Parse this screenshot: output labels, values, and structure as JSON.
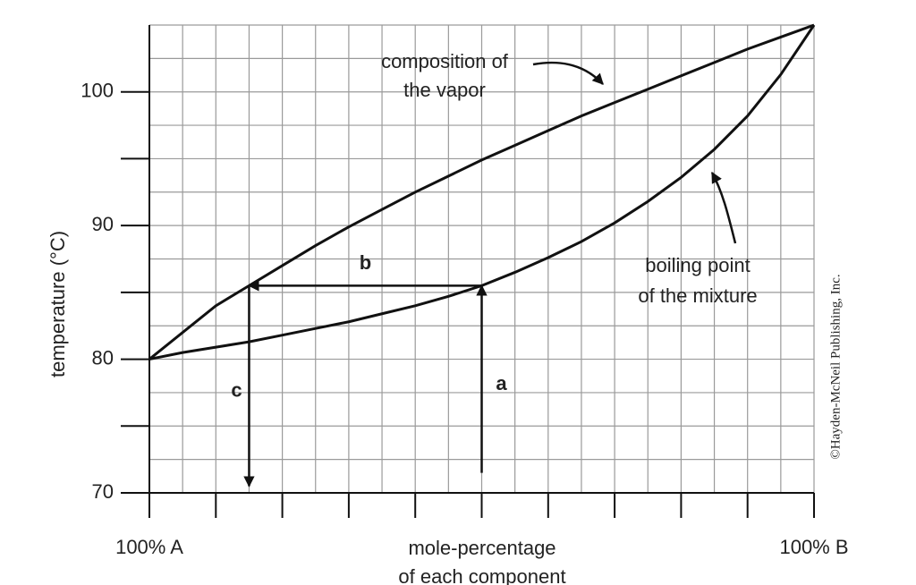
{
  "chart_data": {
    "type": "line",
    "ylabel": "temperature (°C)",
    "xlabel": [
      "mole-percentage",
      "of each component"
    ],
    "credit": "©Hayden-McNeil Publishing, Inc.",
    "xlim": [
      0,
      100
    ],
    "ylim": [
      70,
      105
    ],
    "xticks": [
      {
        "value": 0,
        "label": "100% A"
      },
      {
        "value": 10,
        "label": null
      },
      {
        "value": 20,
        "label": null
      },
      {
        "value": 30,
        "label": null
      },
      {
        "value": 40,
        "label": null
      },
      {
        "value": 50,
        "label": null
      },
      {
        "value": 60,
        "label": null
      },
      {
        "value": 70,
        "label": null
      },
      {
        "value": 80,
        "label": null
      },
      {
        "value": 90,
        "label": null
      },
      {
        "value": 100,
        "label": "100% B"
      }
    ],
    "yticks": [
      70,
      {
        "value": 75,
        "label": null
      },
      80,
      {
        "value": 85,
        "label": null
      },
      90,
      {
        "value": 95,
        "label": null
      },
      100
    ],
    "xgrid": [
      0,
      5,
      10,
      15,
      20,
      25,
      30,
      35,
      40,
      45,
      50,
      55,
      60,
      65,
      70,
      75,
      80,
      85,
      90,
      95,
      100
    ],
    "ygrid": [
      72.5,
      75,
      77.5,
      80,
      82.5,
      85,
      87.5,
      90,
      92.5,
      95,
      97.5,
      100,
      102.5,
      105
    ],
    "grid": true,
    "series": [
      {
        "name": [
          "composition of",
          "the vapor"
        ],
        "color": "#111111",
        "x": [
          0,
          5,
          10,
          15,
          20,
          25,
          30,
          35,
          40,
          45,
          50,
          55,
          60,
          65,
          70,
          75,
          80,
          85,
          90,
          95,
          100
        ],
        "values": [
          80,
          82,
          84,
          85.5,
          87,
          88.5,
          89.9,
          91.2,
          92.5,
          93.7,
          94.9,
          96,
          97.1,
          98.2,
          99.2,
          100.2,
          101.2,
          102.2,
          103.2,
          104.1,
          105
        ]
      },
      {
        "name": [
          "boiling point",
          "of the mixture"
        ],
        "color": "#111111",
        "x": [
          0,
          5,
          10,
          15,
          20,
          25,
          30,
          35,
          40,
          45,
          50,
          55,
          60,
          65,
          70,
          75,
          80,
          85,
          90,
          95,
          100
        ],
        "values": [
          80,
          80.5,
          80.9,
          81.3,
          81.8,
          82.3,
          82.8,
          83.4,
          84,
          84.7,
          85.5,
          86.5,
          87.6,
          88.8,
          90.2,
          91.8,
          93.6,
          95.7,
          98.2,
          101.3,
          105
        ]
      }
    ],
    "annotations": [
      {
        "label": "a",
        "from": [
          50,
          71.5
        ],
        "to": [
          50,
          85.5
        ]
      },
      {
        "label": "b",
        "from": [
          50,
          85.5
        ],
        "to": [
          15,
          85.5
        ]
      },
      {
        "label": "c",
        "from": [
          15,
          85.5
        ],
        "to": [
          15,
          70.5
        ]
      }
    ]
  }
}
